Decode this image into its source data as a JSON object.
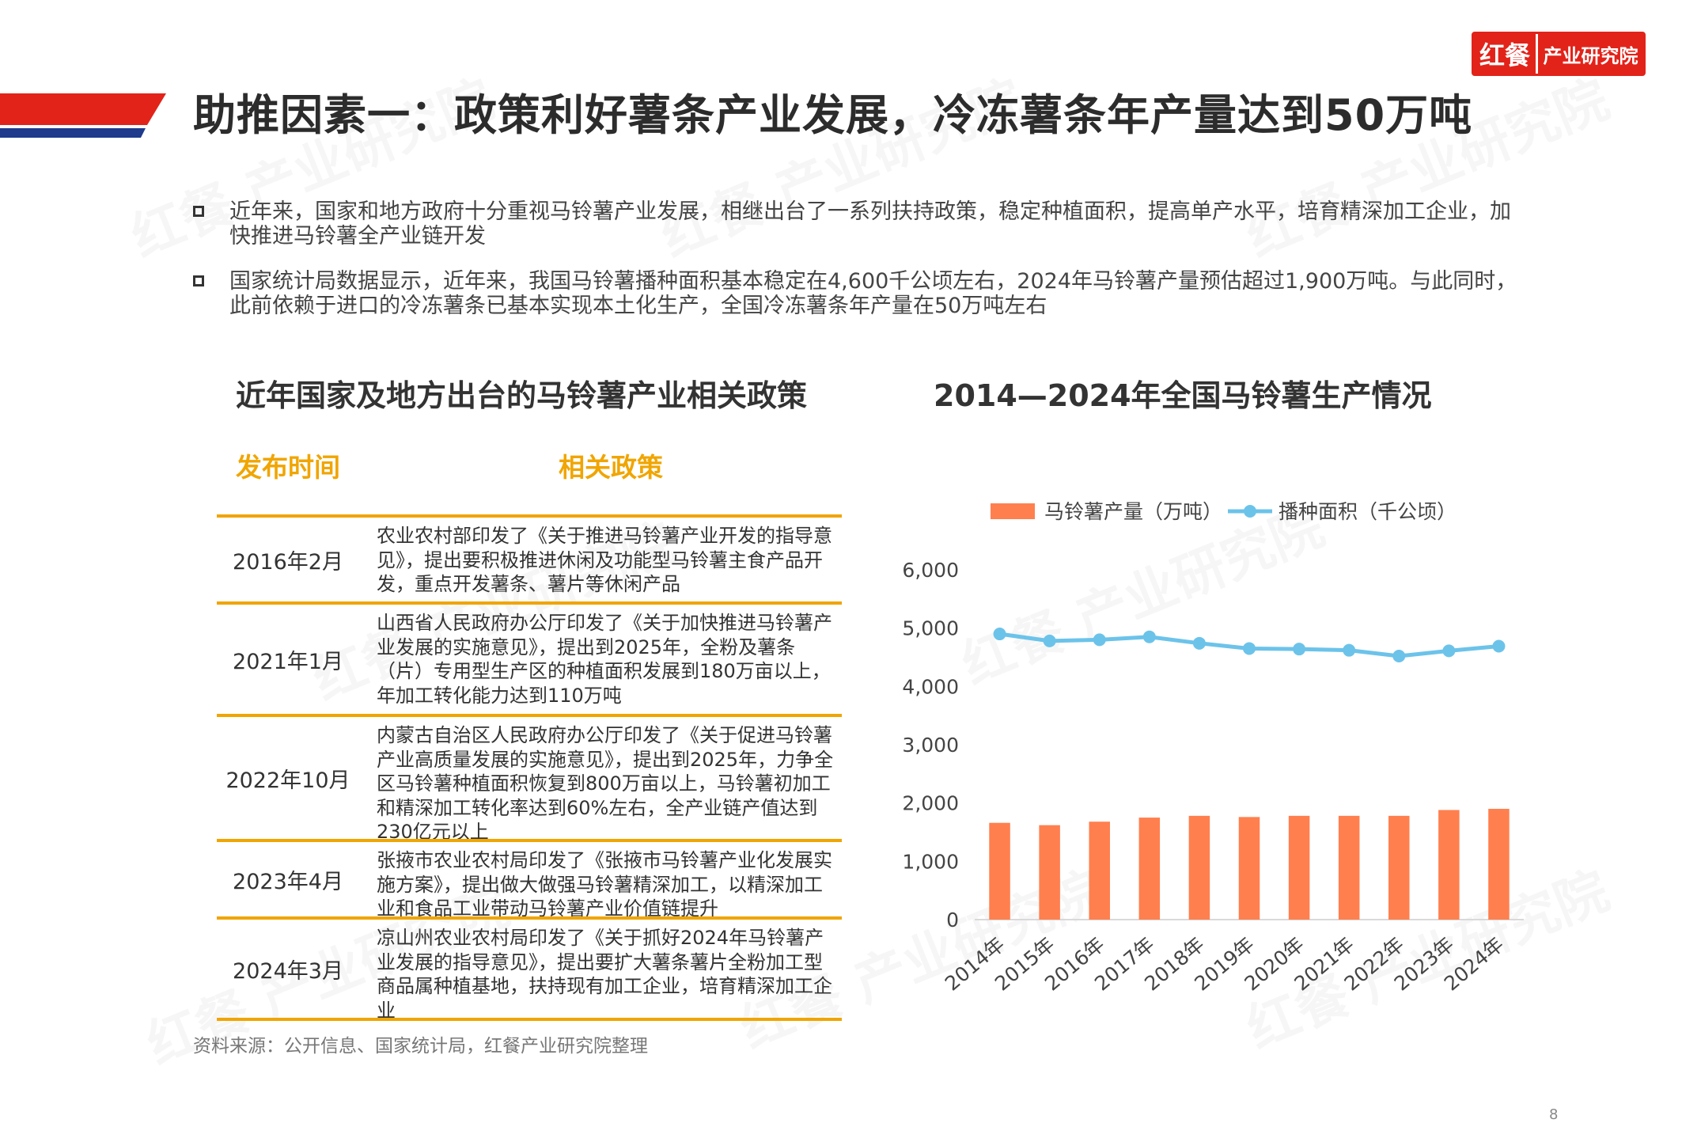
{
  "brand": {
    "logo_mark": "红餐",
    "logo_text": "产业研究院",
    "watermark": "红餐 产业研究院"
  },
  "colors": {
    "accent_red": "#e2231a",
    "accent_blue": "#1e3b8c",
    "table_gold": "#f0a500",
    "bar_orange": "#ff7f4f",
    "line_blue": "#6cc3ea"
  },
  "title": "助推因素一：政策利好薯条产业发展，冷冻薯条年产量达到50万吨",
  "bullets": [
    "近年来，国家和地方政府十分重视马铃薯产业发展，相继出台了一系列扶持政策，稳定种植面积，提高单产水平，培育精深加工企业，加快推进马铃薯全产业链开发",
    "国家统计局数据显示，近年来，我国马铃薯播种面积基本稳定在4,600千公顷左右，2024年马铃薯产量预估超过1,900万吨。与此同时，此前依赖于进口的冷冻薯条已基本实现本土化生产，全国冷冻薯条年产量在50万吨左右"
  ],
  "policy_section": {
    "title": "近年国家及地方出台的马铃薯产业相关政策",
    "col_date": "发布时间",
    "col_policy": "相关政策",
    "rows": [
      {
        "date": "2016年2月",
        "text": "农业农村部印发了《关于推进马铃薯产业开发的指导意见》，提出要积极推进休闲及功能型马铃薯主食产品开发，重点开发薯条、薯片等休闲产品"
      },
      {
        "date": "2021年1月",
        "text": "山西省人民政府办公厅印发了《关于加快推进马铃薯产业发展的实施意见》，提出到2025年，全粉及薯条（片）专用型生产区的种植面积发展到180万亩以上，年加工转化能力达到110万吨"
      },
      {
        "date": "2022年10月",
        "text": "内蒙古自治区人民政府办公厅印发了《关于促进马铃薯产业高质量发展的实施意见》，提出到2025年，力争全区马铃薯种植面积恢复到800万亩以上，马铃薯初加工和精深加工转化率达到60%左右，全产业链产值达到230亿元以上"
      },
      {
        "date": "2023年4月",
        "text": "张掖市农业农村局印发了《张掖市马铃薯产业化发展实施方案》，提出做大做强马铃薯精深加工，以精深加工业和食品工业带动马铃薯产业价值链提升"
      },
      {
        "date": "2024年3月",
        "text": "凉山州农业农村局印发了《关于抓好2024年马铃薯产业发展的指导意见》，提出要扩大薯条薯片全粉加工型商品属种植基地，扶持现有加工企业，培育精深加工企业"
      }
    ]
  },
  "chart_section": {
    "title": "2014—2024年全国马铃薯生产情况"
  },
  "source_note": "资料来源：公开信息、国家统计局，红餐产业研究院整理",
  "page_number": "8",
  "chart_data": {
    "type": "bar",
    "title": "2014—2024年全国马铃薯生产情况",
    "categories": [
      "2014年",
      "2015年",
      "2016年",
      "2017年",
      "2018年",
      "2019年",
      "2020年",
      "2021年",
      "2022年",
      "2023年",
      "2024年"
    ],
    "series": [
      {
        "name": "马铃薯产量（万吨）",
        "type": "bar",
        "color": "#ff7f4f",
        "values": [
          1660,
          1620,
          1680,
          1750,
          1780,
          1760,
          1780,
          1780,
          1780,
          1880,
          1900
        ]
      },
      {
        "name": "播种面积（千公顷）",
        "type": "line",
        "color": "#6cc3ea",
        "values": [
          4900,
          4780,
          4800,
          4850,
          4740,
          4650,
          4640,
          4620,
          4520,
          4610,
          4690
        ]
      }
    ],
    "ylim": [
      0,
      6000
    ],
    "yticks": [
      "0",
      "1,000",
      "2,000",
      "3,000",
      "4,000",
      "5,000",
      "6,000"
    ],
    "legend": "top",
    "grid": false
  }
}
